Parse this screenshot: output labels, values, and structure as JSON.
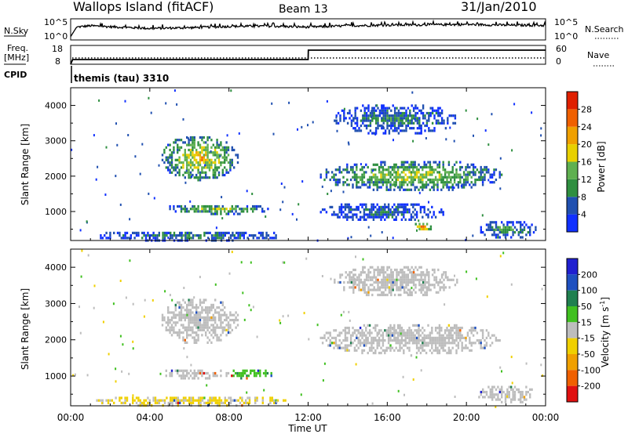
{
  "header": {
    "title": "Wallops Island (fitACF)",
    "beam": "Beam 13",
    "date": "31/Jan/2010"
  },
  "noise_panel": {
    "left_label": "N.Sky",
    "right_label": "N.Search",
    "tick_top": "10^5",
    "tick_bottom": "10^0"
  },
  "freq_panel": {
    "left_label_line1": "Freq.",
    "left_label_line2": "[MHz]",
    "right_label": "Nave",
    "left_ticks": [
      "18",
      "8"
    ],
    "right_ticks": [
      "60",
      "0"
    ]
  },
  "cpid": {
    "label": "CPID",
    "value": "themis (tau) 3310"
  },
  "time_axis": {
    "label": "Time UT",
    "ticks": [
      "00:00",
      "04:00",
      "08:00",
      "12:00",
      "16:00",
      "20:00",
      "00:00"
    ]
  },
  "colors": {
    "power": [
      "#1030ff",
      "#2050b0",
      "#2f8f40",
      "#5fb050",
      "#e8d000",
      "#f0a000",
      "#f06000",
      "#e02000"
    ],
    "velocity": [
      "#e01010",
      "#f06000",
      "#f0a000",
      "#f0d000",
      "#bdbdbd",
      "#40c020",
      "#208050",
      "#1e50c0",
      "#2020d0"
    ]
  },
  "chart_data": [
    {
      "type": "line",
      "title": "Wallops Island (fitACF)",
      "series": [
        {
          "name": "N.Sky",
          "x_hours": [
            0,
            0.3,
            1,
            2,
            4,
            6,
            8,
            10,
            12,
            14,
            16,
            18,
            20,
            22,
            24
          ],
          "values_log10": [
            0.3,
            3.2,
            3.6,
            3.3,
            2.8,
            3.0,
            3.4,
            3.5,
            3.2,
            3.6,
            3.8,
            3.9,
            4.0,
            3.8,
            3.7
          ]
        }
      ],
      "xlim": [
        0,
        24
      ]
    },
    {
      "type": "line",
      "series": [
        {
          "name": "Freq.",
          "x_hours": [
            0,
            0.1,
            12,
            12.01,
            24
          ],
          "values": [
            8,
            10.5,
            10.5,
            15.5,
            15.5
          ]
        },
        {
          "name": "Nave",
          "x_hours": [
            0,
            24
          ],
          "values": [
            20,
            20
          ]
        }
      ],
      "xlim": [
        0,
        24
      ]
    },
    {
      "type": "heatmap",
      "ylabel": "Slant Range [km]",
      "xlabel": "Time UT",
      "xlim": [
        0,
        24
      ],
      "ylim": [
        180,
        4500
      ],
      "yticks": [
        1000,
        2000,
        3000,
        4000
      ],
      "colorbar": {
        "label": "Power [dB]",
        "ticks": [
          4,
          8,
          12,
          16,
          20,
          24,
          28
        ],
        "range": [
          0,
          32
        ]
      },
      "echo_regions": [
        {
          "t0": 4.5,
          "t1": 8.5,
          "r0": 1900,
          "r1": 3200,
          "peak": 22
        },
        {
          "t0": 4.5,
          "t1": 10.2,
          "r0": 950,
          "r1": 1250,
          "peak": 16
        },
        {
          "t0": 12.5,
          "t1": 21.8,
          "r0": 1600,
          "r1": 2500,
          "peak": 18
        },
        {
          "t0": 13.2,
          "t1": 19.5,
          "r0": 3200,
          "r1": 4100,
          "peak": 10
        },
        {
          "t0": 17.3,
          "t1": 18.2,
          "r0": 450,
          "r1": 750,
          "peak": 28
        },
        {
          "t0": 20.5,
          "t1": 23.5,
          "r0": 250,
          "r1": 800,
          "peak": 12
        },
        {
          "t0": 12.5,
          "t1": 19.0,
          "r0": 750,
          "r1": 1300,
          "peak": 8
        },
        {
          "t0": 1.0,
          "t1": 11.0,
          "r0": 200,
          "r1": 500,
          "peak": 10
        }
      ]
    },
    {
      "type": "heatmap",
      "ylabel": "Slant Range [km]",
      "xlabel": "Time UT",
      "xlim": [
        0,
        24
      ],
      "ylim": [
        180,
        4500
      ],
      "yticks": [
        1000,
        2000,
        3000,
        4000
      ],
      "colorbar": {
        "label": "Velocity [m s^-1]",
        "ticks": [
          200,
          100,
          50,
          15,
          -15,
          -50,
          -100,
          -200
        ]
      },
      "echo_regions": [
        {
          "t0": 4.5,
          "t1": 8.5,
          "r0": 1900,
          "r1": 3200,
          "velocity": 0
        },
        {
          "t0": 4.5,
          "t1": 8.0,
          "r0": 950,
          "r1": 1250,
          "velocity": 0
        },
        {
          "t0": 8.0,
          "t1": 10.2,
          "r0": 950,
          "r1": 1250,
          "velocity": 40
        },
        {
          "t0": 12.5,
          "t1": 21.8,
          "r0": 1600,
          "r1": 2500,
          "velocity": 0
        },
        {
          "t0": 13.2,
          "t1": 19.5,
          "r0": 3200,
          "r1": 4100,
          "velocity": 0
        },
        {
          "t0": 20.5,
          "t1": 23.5,
          "r0": 250,
          "r1": 800,
          "velocity": 0
        },
        {
          "t0": 1.0,
          "t1": 11.0,
          "r0": 200,
          "r1": 500,
          "velocity": -20
        }
      ]
    }
  ]
}
